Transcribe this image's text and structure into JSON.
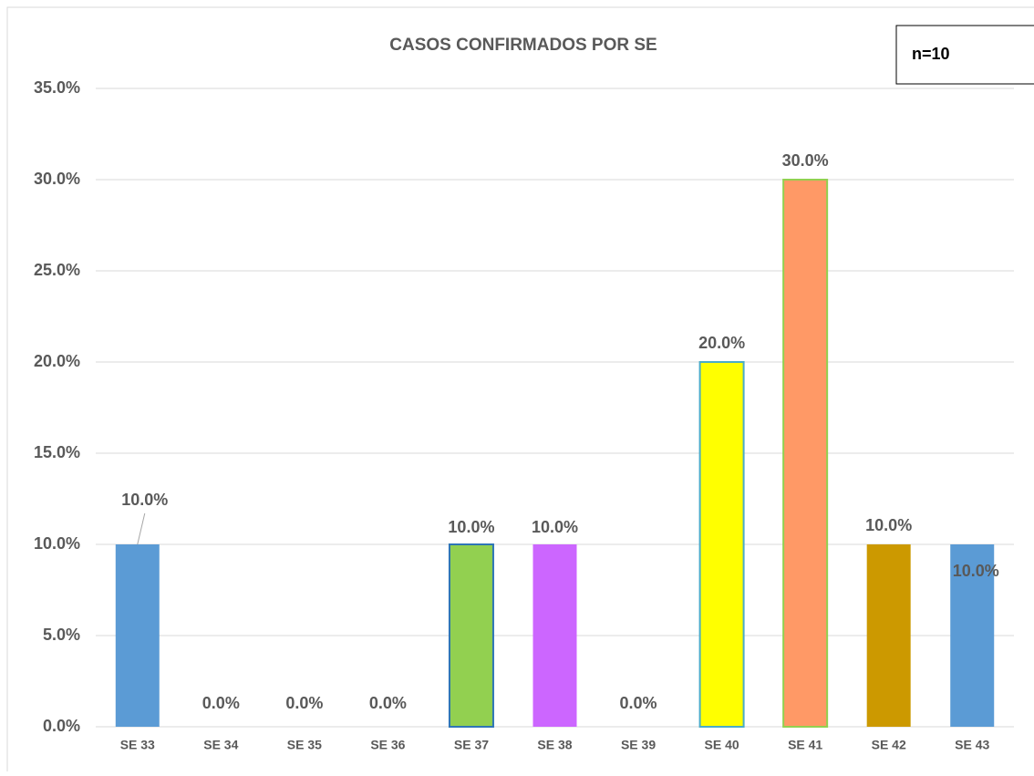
{
  "chart_data": {
    "type": "bar",
    "title": "CASOS CONFIRMADOS POR SE",
    "annotation": "n=10",
    "categories": [
      "SE 33",
      "SE 34",
      "SE 35",
      "SE 36",
      "SE 37",
      "SE 38",
      "SE 39",
      "SE 40",
      "SE 41",
      "SE 42",
      "SE 43"
    ],
    "values": [
      10,
      0,
      0,
      0,
      10,
      10,
      0,
      20,
      30,
      10,
      10
    ],
    "value_labels": [
      "10.0%",
      "0.0%",
      "0.0%",
      "0.0%",
      "10.0%",
      "10.0%",
      "0.0%",
      "20.0%",
      "30.0%",
      "10.0%",
      "10.0%"
    ],
    "colors": [
      "#5b9bd5",
      "#5b9bd5",
      "#5b9bd5",
      "#5b9bd5",
      "#92d050",
      "#cc66ff",
      "#5b9bd5",
      "#ffff00",
      "#ff9966",
      "#cc9900",
      "#5b9bd5"
    ],
    "edge_colors": [
      null,
      null,
      null,
      null,
      "#2e75b6",
      null,
      null,
      "#4bacc6",
      "#92d050",
      null,
      null
    ],
    "ylim": [
      0,
      35
    ],
    "yticks": [
      {
        "value": 0,
        "label": "0.0%"
      },
      {
        "value": 5,
        "label": "5.0%"
      },
      {
        "value": 10,
        "label": "10.0%"
      },
      {
        "value": 15,
        "label": "15.0%"
      },
      {
        "value": 20,
        "label": "20.0%"
      },
      {
        "value": 25,
        "label": "25.0%"
      },
      {
        "value": 30,
        "label": "30.0%"
      },
      {
        "value": 35,
        "label": "35.0%"
      }
    ],
    "grid": true
  }
}
